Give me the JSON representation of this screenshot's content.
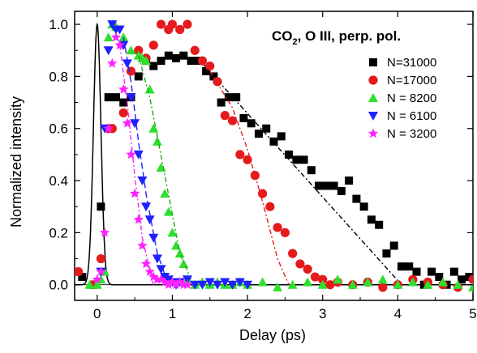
{
  "chart_data": {
    "type": "scatter",
    "title_main": "CO",
    "title_sub": "2",
    "title_rest": ", O III, perp. pol.",
    "xlabel": "Delay (ps)",
    "ylabel": "Normalized intensity",
    "xlim": [
      -0.3,
      5.0
    ],
    "ylim": [
      -0.06,
      1.05
    ],
    "xticks": [
      0,
      1,
      2,
      3,
      4,
      5
    ],
    "yticks": [
      0.0,
      0.2,
      0.4,
      0.6,
      0.8,
      1.0
    ],
    "xtick_labels": [
      "0",
      "1",
      "2",
      "3",
      "4",
      "5"
    ],
    "ytick_labels": [
      "0.0",
      "0.2",
      "0.4",
      "0.6",
      "0.8",
      "1.0"
    ],
    "legend_position": "top-right",
    "series": [
      {
        "name": "N=31000",
        "marker": "square",
        "color": "#000000",
        "x": [
          -0.2,
          -0.05,
          0.05,
          0.15,
          0.25,
          0.35,
          0.45,
          0.55,
          0.65,
          0.75,
          0.85,
          0.95,
          1.05,
          1.15,
          1.25,
          1.35,
          1.45,
          1.55,
          1.65,
          1.75,
          1.85,
          1.95,
          2.05,
          2.15,
          2.25,
          2.35,
          2.45,
          2.55,
          2.65,
          2.75,
          2.85,
          2.95,
          3.05,
          3.15,
          3.25,
          3.35,
          3.45,
          3.55,
          3.65,
          3.75,
          3.85,
          3.95,
          4.05,
          4.15,
          4.25,
          4.35,
          4.45,
          4.55,
          4.65,
          4.75,
          4.85,
          4.95
        ],
        "y": [
          0.03,
          0.0,
          0.3,
          0.72,
          0.72,
          0.7,
          0.72,
          0.8,
          0.86,
          0.84,
          0.86,
          0.88,
          0.87,
          0.88,
          0.86,
          0.86,
          0.82,
          0.8,
          0.7,
          0.72,
          0.72,
          0.64,
          0.62,
          0.58,
          0.6,
          0.55,
          0.57,
          0.5,
          0.48,
          0.48,
          0.44,
          0.38,
          0.38,
          0.38,
          0.36,
          0.4,
          0.33,
          0.3,
          0.25,
          0.23,
          0.12,
          0.15,
          0.07,
          0.07,
          0.05,
          0.0,
          0.05,
          0.03,
          0.0,
          0.05,
          0.02,
          0.03
        ],
        "fit_x": [
          1.4,
          4.05
        ],
        "fit_y": [
          0.85,
          0.0
        ]
      },
      {
        "name": "N=17000",
        "marker": "circle",
        "color": "#e41a1c",
        "x": [
          -0.25,
          -0.05,
          0.05,
          0.15,
          0.2,
          0.35,
          0.45,
          0.55,
          0.65,
          0.75,
          0.85,
          0.95,
          1.0,
          1.1,
          1.2,
          1.3,
          1.4,
          1.5,
          1.6,
          1.7,
          1.8,
          1.9,
          2.0,
          2.1,
          2.2,
          2.3,
          2.4,
          2.5,
          2.6,
          2.7,
          2.8,
          2.9,
          3.0,
          3.1,
          3.2,
          3.4,
          3.6,
          3.8,
          4.0,
          4.2,
          4.4,
          4.6,
          4.8,
          5.0
        ],
        "y": [
          0.05,
          0.0,
          0.1,
          0.6,
          0.6,
          0.66,
          0.82,
          0.9,
          0.87,
          0.92,
          1.0,
          0.98,
          1.0,
          0.98,
          1.0,
          0.9,
          0.86,
          0.84,
          0.78,
          0.65,
          0.63,
          0.5,
          0.48,
          0.42,
          0.35,
          0.3,
          0.22,
          0.2,
          0.12,
          0.08,
          0.06,
          0.03,
          0.02,
          0.0,
          0.01,
          0.0,
          0.01,
          -0.01,
          0.0,
          0.02,
          0.01,
          0.0,
          -0.01,
          0.02
        ],
        "fit_x": [
          1.5,
          1.8,
          2.0,
          2.2,
          2.4,
          2.55
        ],
        "fit_y": [
          0.82,
          0.68,
          0.52,
          0.32,
          0.1,
          0.0
        ]
      },
      {
        "name": "N = 8200",
        "marker": "triangle-up",
        "color": "#2ee02e",
        "x": [
          -0.1,
          0.0,
          0.05,
          0.1,
          0.15,
          0.2,
          0.25,
          0.35,
          0.45,
          0.55,
          0.6,
          0.65,
          0.7,
          0.75,
          0.8,
          0.85,
          0.9,
          0.95,
          1.0,
          1.05,
          1.1,
          1.15,
          1.2,
          1.3,
          1.4,
          1.5,
          1.6,
          1.7,
          1.8,
          1.9,
          2.0,
          2.2,
          2.4,
          2.6,
          2.8,
          3.0,
          3.2,
          3.4,
          3.6,
          3.8,
          4.0,
          4.2,
          4.4,
          4.6,
          4.8,
          5.0
        ],
        "y": [
          0.0,
          0.0,
          0.02,
          0.05,
          0.95,
          1.0,
          0.99,
          0.95,
          0.9,
          0.88,
          0.87,
          0.86,
          0.75,
          0.6,
          0.55,
          0.45,
          0.35,
          0.28,
          0.2,
          0.15,
          0.12,
          0.08,
          0.02,
          0.0,
          0.01,
          0.0,
          0.01,
          0.0,
          0.0,
          0.01,
          0.0,
          0.01,
          -0.01,
          0.0,
          0.01,
          0.0,
          0.02,
          0.0,
          0.01,
          0.02,
          0.0,
          0.01,
          0.0,
          0.01,
          0.0,
          -0.01
        ],
        "fit_x": [
          0.55,
          0.7,
          0.9,
          1.1,
          1.25
        ],
        "fit_y": [
          0.88,
          0.72,
          0.42,
          0.12,
          0.02
        ]
      },
      {
        "name": "N = 6100",
        "marker": "triangle-down",
        "color": "#1f1fff",
        "x": [
          0.05,
          0.1,
          0.15,
          0.2,
          0.25,
          0.3,
          0.35,
          0.4,
          0.45,
          0.5,
          0.55,
          0.6,
          0.65,
          0.7,
          0.75,
          0.8,
          0.85,
          0.9,
          0.95,
          1.0,
          1.05,
          1.1,
          1.2,
          1.3,
          1.4,
          1.5,
          1.6,
          1.7,
          1.8,
          1.9,
          2.0
        ],
        "y": [
          0.05,
          0.6,
          0.9,
          1.0,
          0.98,
          0.98,
          0.92,
          0.85,
          0.72,
          0.62,
          0.5,
          0.4,
          0.3,
          0.25,
          0.18,
          0.1,
          0.06,
          0.03,
          0.02,
          0.01,
          0.0,
          0.01,
          0.02,
          0.0,
          0.0,
          0.01,
          0.0,
          0.01,
          0.0,
          0.01,
          0.0
        ],
        "fit_x": [
          0.35,
          0.45,
          0.55,
          0.65,
          0.8,
          0.95
        ],
        "fit_y": [
          0.95,
          0.78,
          0.55,
          0.35,
          0.12,
          0.0
        ]
      },
      {
        "name": "N = 3200",
        "marker": "star",
        "color": "#ff22ff",
        "x": [
          0.0,
          0.05,
          0.1,
          0.15,
          0.2,
          0.25,
          0.3,
          0.35,
          0.4,
          0.45,
          0.5,
          0.55,
          0.6,
          0.65,
          0.7,
          0.75,
          0.8,
          0.85,
          0.9,
          0.95,
          1.0,
          1.05,
          1.1,
          1.15,
          1.2
        ],
        "y": [
          0.02,
          0.05,
          0.2,
          0.6,
          0.85,
          0.95,
          0.92,
          0.75,
          0.62,
          0.5,
          0.35,
          0.25,
          0.15,
          0.08,
          0.05,
          0.03,
          0.02,
          0.02,
          0.01,
          0.0,
          0.01,
          0.0,
          0.01,
          0.0,
          0.0
        ],
        "fit_x": [
          0.3,
          0.4,
          0.5,
          0.6,
          0.75
        ],
        "fit_y": [
          0.92,
          0.7,
          0.42,
          0.18,
          0.0
        ]
      }
    ],
    "pulse": {
      "color": "#000000",
      "center": 0.0,
      "sigma": 0.05,
      "peak": 1.0
    }
  }
}
